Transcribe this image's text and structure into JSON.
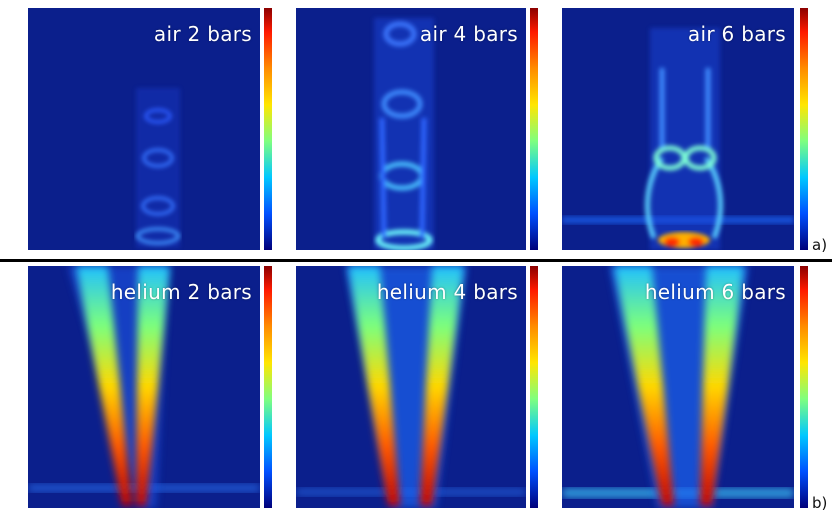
{
  "panels_top": [
    {
      "label": "air 2 bars"
    },
    {
      "label": "air 4 bars"
    },
    {
      "label": "air 6 bars"
    }
  ],
  "panels_bottom": [
    {
      "label": "helium 2 bars"
    },
    {
      "label": "helium 4 bars"
    },
    {
      "label": "helium 6 bars"
    }
  ],
  "row_labels": {
    "a": "a)",
    "b": "b)"
  },
  "colors": {
    "background_blue": "#0b1f8c",
    "divider": "#000000"
  },
  "colormap": "jet"
}
